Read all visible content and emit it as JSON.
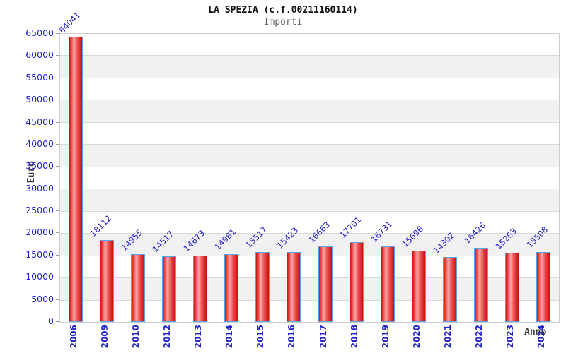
{
  "chart_data": {
    "type": "bar",
    "title": "LA SPEZIA (c.f.00211160114)",
    "subtitle": "Importi",
    "xlabel": "Anno",
    "ylabel": "Euro",
    "categories": [
      "2006",
      "2009",
      "2010",
      "2012",
      "2013",
      "2014",
      "2015",
      "2016",
      "2017",
      "2018",
      "2019",
      "2020",
      "2021",
      "2022",
      "2023",
      "2024"
    ],
    "values": [
      64041,
      18112,
      14955,
      14517,
      14673,
      14981,
      15517,
      15423,
      16663,
      17701,
      16731,
      15696,
      14302,
      16426,
      15263,
      15508
    ],
    "ylim": [
      0,
      65000
    ],
    "ytick_step": 5000,
    "grid": "horizontal gridlines with alternating stripe bands",
    "legend": "none",
    "colors": {
      "bar_fill_dark": "#cc1212",
      "bar_fill_light": "#f5a8a8",
      "bar_border": "#58a2e6",
      "tick_text": "#2222cc",
      "value_label_text": "#2222cc",
      "axis_title_text": "#3d3d3d",
      "stripe": "#f1f1f1",
      "gridline": "#d9d9d9",
      "plot_border": "#cccccc",
      "subtitle_text": "#666666"
    }
  }
}
